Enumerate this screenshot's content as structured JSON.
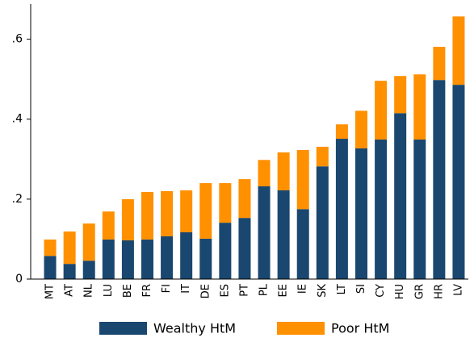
{
  "chart_data": {
    "type": "stacked-bar",
    "categories": [
      "MT",
      "AT",
      "NL",
      "LU",
      "BE",
      "FR",
      "FI",
      "IT",
      "DE",
      "ES",
      "PT",
      "PL",
      "EE",
      "IE",
      "SK",
      "LT",
      "SI",
      "CY",
      "HU",
      "GR",
      "HR",
      "LV"
    ],
    "series": [
      {
        "name": "Wealthy HtM",
        "color": "#1a476f",
        "values": [
          0.058,
          0.038,
          0.046,
          0.099,
          0.097,
          0.099,
          0.107,
          0.117,
          0.101,
          0.141,
          0.153,
          0.232,
          0.222,
          0.175,
          0.282,
          0.351,
          0.327,
          0.349,
          0.415,
          0.349,
          0.498,
          0.486
        ]
      },
      {
        "name": "Poor HtM",
        "color": "#ff9000",
        "values": [
          0.041,
          0.081,
          0.093,
          0.07,
          0.103,
          0.119,
          0.113,
          0.105,
          0.139,
          0.099,
          0.097,
          0.066,
          0.095,
          0.148,
          0.049,
          0.036,
          0.094,
          0.147,
          0.093,
          0.163,
          0.083,
          0.171
        ]
      }
    ],
    "ylim": [
      0,
      0.688
    ],
    "yticks": [
      0,
      {
        "value": 0.2,
        "label": ".2"
      },
      {
        "value": 0.4,
        "label": ".4"
      },
      {
        "value": 0.6,
        "label": ".6"
      }
    ],
    "grid": false,
    "legend": "bottom"
  }
}
